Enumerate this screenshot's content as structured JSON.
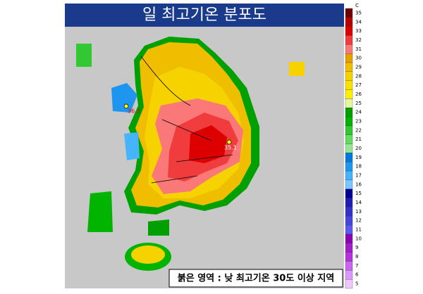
{
  "title": "일 최고기온 분포도",
  "legend": {
    "unit": "C",
    "ticks": [
      35,
      34,
      33,
      32,
      31,
      30,
      29,
      28,
      27,
      26,
      25,
      24,
      23,
      22,
      21,
      20,
      19,
      18,
      17,
      16,
      15,
      14,
      13,
      12,
      11,
      10,
      9,
      8,
      7,
      6,
      5
    ],
    "colors": [
      "#6e0000",
      "#b40000",
      "#dc0000",
      "#f03c3c",
      "#fa7878",
      "#e6a000",
      "#f0be00",
      "#f5d200",
      "#fae100",
      "#fff000",
      "#e6f5a0",
      "#00a000",
      "#00b400",
      "#32c832",
      "#64dc64",
      "#96e696",
      "#0078dc",
      "#1e96f0",
      "#46b4fa",
      "#78c8ff",
      "#000096",
      "#1e1eb4",
      "#3232c8",
      "#4646dc",
      "#5a5af0",
      "#8c00b4",
      "#a01ec8",
      "#b432dc",
      "#c864f0",
      "#dc96ff",
      "#f0c8ff"
    ]
  },
  "stations": [
    {
      "label": 36.3
    },
    {
      "label": 35.1
    }
  ],
  "caption": "붉은 영역 : 낮 최고기온 30도 이상 지역"
}
